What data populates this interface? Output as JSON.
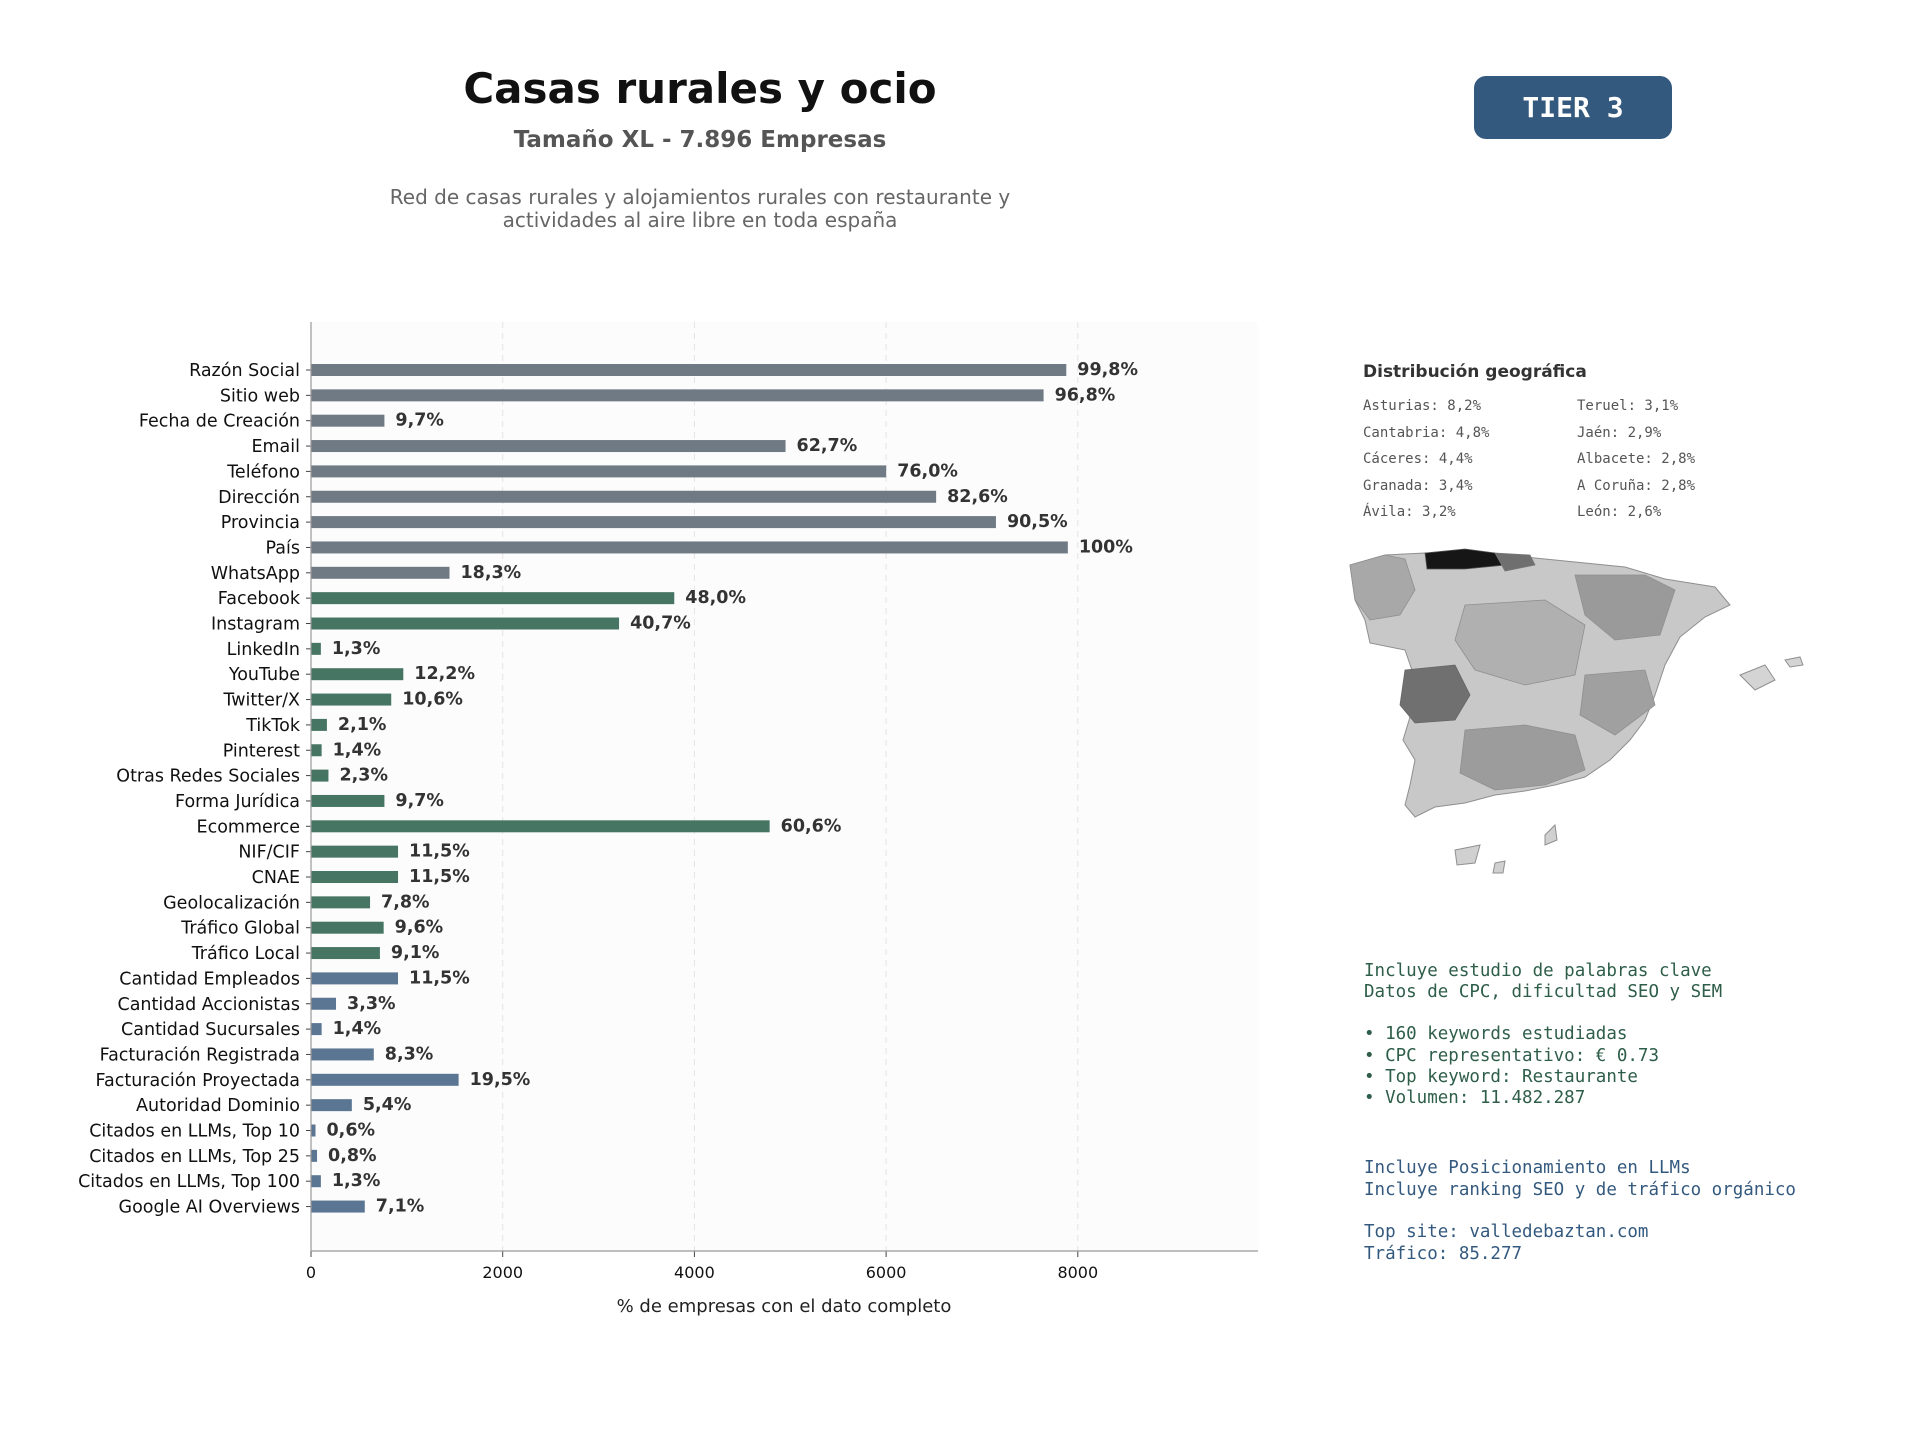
{
  "header": {
    "title": "Casas rurales y ocio",
    "subtitle": "Tamaño XL - 7.896 Empresas",
    "description_line1": "Red de casas rurales y alojamientos rurales con restaurante y",
    "description_line2": "actividades al aire libre en toda españa",
    "tier_label": "TIER 3"
  },
  "colors": {
    "identity": "#707a84",
    "digital": "#477563",
    "business": "#5b7693",
    "tier_bg": "#34597e"
  },
  "chart_data": {
    "type": "bar",
    "orientation": "horizontal",
    "xlabel": "% de empresas con el dato completo",
    "xlim": [
      0,
      9880
    ],
    "xticks": [
      0,
      2000,
      4000,
      6000,
      8000
    ],
    "grid": "vertical dashed",
    "categories": [
      "Razón Social",
      "Sitio web",
      "Fecha de Creación",
      "Email",
      "Teléfono",
      "Dirección",
      "Provincia",
      "País",
      "WhatsApp",
      "Facebook",
      "Instagram",
      "LinkedIn",
      "YouTube",
      "Twitter/X",
      "TikTok",
      "Pinterest",
      "Otras Redes Sociales",
      "Forma Jurídica",
      "Ecommerce",
      "NIF/CIF",
      "CNAE",
      "Geolocalización",
      "Tráfico Global",
      "Tráfico Local",
      "Cantidad Empleados",
      "Cantidad Accionistas",
      "Cantidad Sucursales",
      "Facturación Registrada",
      "Facturación Proyectada",
      "Autoridad Dominio",
      "Citados en LLMs, Top 10",
      "Citados en LLMs, Top 25",
      "Citados en LLMs, Top 100",
      "Google AI Overviews"
    ],
    "values": [
      7880,
      7643,
      766,
      4951,
      6001,
      6522,
      7146,
      7896,
      1445,
      3790,
      3214,
      103,
      963,
      837,
      166,
      111,
      182,
      766,
      4785,
      908,
      908,
      616,
      758,
      719,
      908,
      261,
      111,
      655,
      1540,
      426,
      47,
      63,
      103,
      561
    ],
    "labels": [
      "99,8%",
      "96,8%",
      "9,7%",
      "62,7%",
      "76,0%",
      "82,6%",
      "90,5%",
      "100%",
      "18,3%",
      "48,0%",
      "40,7%",
      "1,3%",
      "12,2%",
      "10,6%",
      "2,1%",
      "1,4%",
      "2,3%",
      "9,7%",
      "60,6%",
      "11,5%",
      "11,5%",
      "7,8%",
      "9,6%",
      "9,1%",
      "11,5%",
      "3,3%",
      "1,4%",
      "8,3%",
      "19,5%",
      "5,4%",
      "0,6%",
      "0,8%",
      "1,3%",
      "7,1%"
    ],
    "groups": [
      "identity",
      "identity",
      "identity",
      "identity",
      "identity",
      "identity",
      "identity",
      "identity",
      "identity",
      "digital",
      "digital",
      "digital",
      "digital",
      "digital",
      "digital",
      "digital",
      "digital",
      "digital",
      "digital",
      "digital",
      "digital",
      "digital",
      "digital",
      "digital",
      "business",
      "business",
      "business",
      "business",
      "business",
      "business",
      "business",
      "business",
      "business",
      "business"
    ]
  },
  "geo": {
    "title": "Distribución geográfica",
    "left": [
      "Asturias: 8,2%",
      "Cantabria: 4,8%",
      "Cáceres: 4,4%",
      "Granada: 3,4%",
      "Ávila: 3,2%"
    ],
    "right": [
      "Teruel: 3,1%",
      "Jaén: 2,9%",
      "Albacete: 2,8%",
      "A Coruña: 2,8%",
      "León: 2,6%"
    ]
  },
  "seo": {
    "line1": "Incluye estudio de palabras clave",
    "line2": "Datos de CPC, dificultad SEO y SEM",
    "bullet1": "• 160 keywords estudiadas",
    "bullet2": "• CPC representativo: € 0.73",
    "bullet3": "• Top keyword: Restaurante",
    "bullet4": "• Volumen: 11.482.287"
  },
  "llm": {
    "line1": "Incluye Posicionamiento en LLMs",
    "line2": "Incluye ranking SEO y de tráfico orgánico",
    "top_site": "Top site: valledebaztan.com",
    "traffic": "Tráfico: 85.277"
  }
}
